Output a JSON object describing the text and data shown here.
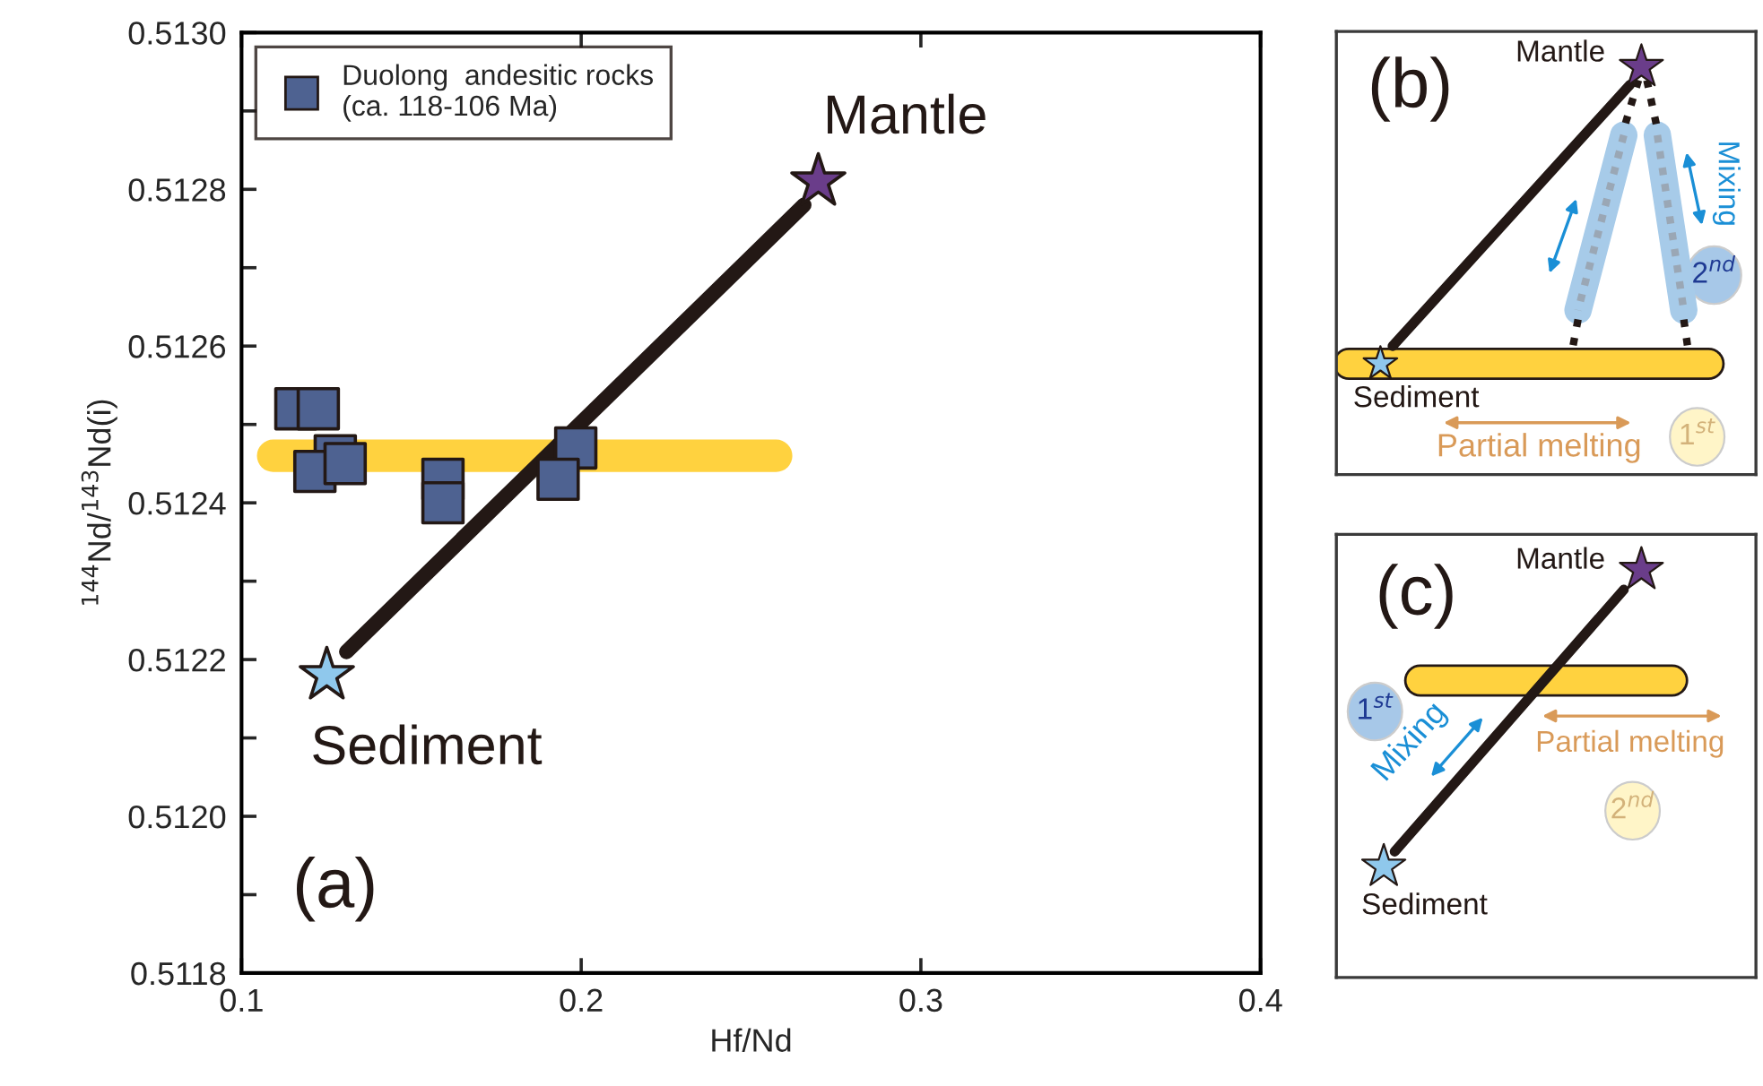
{
  "chart_data": [
    {
      "type": "scatter",
      "xlabel": "Hf/Nd",
      "ylabel": "$^{144}$Nd/$^{143}$Nd(i)",
      "xlim": [
        0.1,
        0.4
      ],
      "ylim": [
        0.5118,
        0.513
      ],
      "xticks": [
        0.1,
        0.2,
        0.3,
        0.4
      ],
      "yticks": [
        {
          "value": 0.5118,
          "label": "0.5118"
        },
        {
          "value": 0.5119,
          "label": null
        },
        {
          "value": 0.512,
          "label": "0.5120"
        },
        {
          "value": 0.5121,
          "label": null
        },
        {
          "value": 0.5122,
          "label": "0.5122"
        },
        {
          "value": 0.5123,
          "label": null
        },
        {
          "value": 0.5124,
          "label": "0.5124"
        },
        {
          "value": 0.5125,
          "label": null
        },
        {
          "value": 0.5126,
          "label": "0.5126"
        },
        {
          "value": 0.5127,
          "label": null
        },
        {
          "value": 0.5128,
          "label": "0.5128"
        },
        {
          "value": 0.5129,
          "label": null
        },
        {
          "value": 0.513,
          "label": "0.5130"
        }
      ],
      "grid": false,
      "legend": "top left",
      "series": [
        {
          "type": "line",
          "color": "#ffd23f",
          "x": [
            0.1093,
            0.2574
          ],
          "values": [
            0.51246,
            0.51246
          ]
        },
        {
          "type": "line",
          "color": "#231815",
          "x": [
            0.1309,
            0.2656
          ],
          "values": [
            0.51221,
            0.51278
          ]
        },
        {
          "type": "scatter",
          "name": "Duolong  andesitic rocks\n(ca. 118-106 Ma)",
          "color": "#4e6291",
          "marker": "square",
          "x": [
            0.116,
            0.1226,
            0.1276,
            0.1216,
            0.1305,
            0.1593,
            0.1593,
            0.1984,
            0.1932
          ],
          "values": [
            0.51252,
            0.51252,
            0.51246,
            0.51244,
            0.51245,
            0.51243,
            0.5124,
            0.51247,
            0.51243
          ]
        },
        {
          "type": "scatter",
          "color": "#8fc8ec",
          "marker": "star",
          "x": [
            0.1251
          ],
          "values": [
            0.51218
          ]
        },
        {
          "type": "scatter",
          "color": "#6a3d8a",
          "marker": "star",
          "x": [
            0.2698
          ],
          "values": [
            0.51281
          ]
        }
      ],
      "annotations": [
        {
          "text": "Mantle",
          "x": 0.2698,
          "y": 0.51281
        },
        {
          "text": "Sediment",
          "x": 0.1251,
          "y": 0.51218
        },
        "(a)"
      ]
    },
    {
      "type": "other",
      "annotations": [
        "(b)",
        "Mantle",
        "Sediment",
        "Partial melting",
        "1$^{st}$",
        "Mixing",
        "2$^{nd}$"
      ]
    },
    {
      "type": "other",
      "annotations": [
        "(c)",
        "Mantle",
        "Sediment",
        "1$^{st}$",
        "Mixing",
        "Partial melting",
        "2$^{nd}$"
      ]
    }
  ]
}
